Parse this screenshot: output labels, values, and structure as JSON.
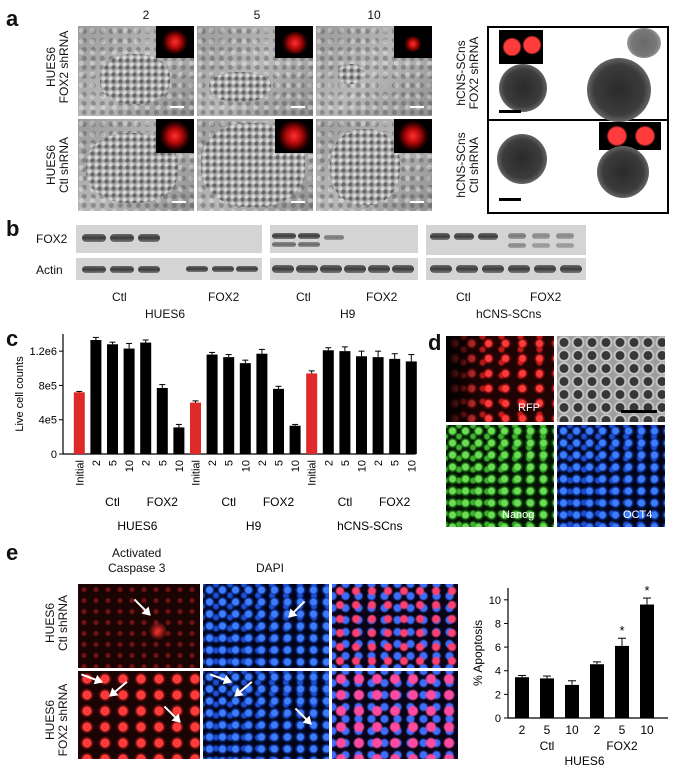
{
  "panel_letters": {
    "a": "a",
    "b": "b",
    "c": "c",
    "d": "d",
    "e": "e"
  },
  "panel_a": {
    "day_labels": [
      "2",
      "5",
      "10"
    ],
    "row_labels": [
      "HUES6\nFOX2 shRNA",
      "HUES6\nCtl shRNA"
    ],
    "sphere_row_labels": [
      "hCNS-SCns\nFOX2 shRNA",
      "hCNS-SCns\nCtl shRNA"
    ]
  },
  "panel_b": {
    "row_labels": [
      "FOX2",
      "Actin"
    ],
    "lane_labels": [
      {
        "ctl": "Ctl",
        "fox2": "FOX2",
        "group": "HUES6"
      },
      {
        "ctl": "Ctl",
        "fox2": "FOX2",
        "group": "H9"
      },
      {
        "ctl": "Ctl",
        "fox2": "FOX2",
        "group": "hCNS-SCns"
      }
    ]
  },
  "panel_d": {
    "labels": [
      "RFP",
      "Nanog",
      "OCT4"
    ]
  },
  "panel_e": {
    "col_labels": [
      "Activated\nCaspase 3",
      "DAPI"
    ],
    "row_labels": [
      "HUES6\nCtl shRNA",
      "HUES6\nFOX2 shRNA"
    ]
  },
  "chart_data": [
    {
      "type": "bar",
      "panel": "c",
      "ylabel": "Live cell counts",
      "ylim": [
        0,
        1400000
      ],
      "yticks": [
        "0",
        "4e5",
        "8e5",
        "1.2e6"
      ],
      "categories": [
        "Initial",
        "2",
        "5",
        "10",
        "2",
        "5",
        "10",
        "Initial",
        "2",
        "5",
        "10",
        "2",
        "5",
        "10",
        "Initial",
        "2",
        "5",
        "10",
        "2",
        "5",
        "10"
      ],
      "values": [
        720000,
        1330000,
        1280000,
        1230000,
        1300000,
        770000,
        310000,
        600000,
        1160000,
        1130000,
        1060000,
        1170000,
        760000,
        330000,
        940000,
        1210000,
        1200000,
        1140000,
        1130000,
        1110000,
        1080000
      ],
      "errors": [
        10000,
        30000,
        25000,
        60000,
        30000,
        40000,
        35000,
        20000,
        25000,
        30000,
        35000,
        50000,
        30000,
        15000,
        30000,
        30000,
        50000,
        60000,
        70000,
        60000,
        80000
      ],
      "bar_colors": [
        "#e02a2a",
        "#000000",
        "#000000",
        "#000000",
        "#000000",
        "#000000",
        "#000000",
        "#e02a2a",
        "#000000",
        "#000000",
        "#000000",
        "#000000",
        "#000000",
        "#000000",
        "#e02a2a",
        "#000000",
        "#000000",
        "#000000",
        "#000000",
        "#000000",
        "#000000"
      ],
      "subgroups": [
        "Ctl",
        "FOX2",
        "Ctl",
        "FOX2",
        "Ctl",
        "FOX2"
      ],
      "groups": [
        "HUES6",
        "H9",
        "hCNS-SCns"
      ]
    },
    {
      "type": "bar",
      "panel": "e",
      "ylabel": "% Apoptosis",
      "ylim": [
        0,
        11
      ],
      "yticks": [
        "0",
        "2",
        "4",
        "6",
        "8",
        "10"
      ],
      "categories": [
        "2",
        "5",
        "10",
        "2",
        "5",
        "10"
      ],
      "values": [
        3.45,
        3.35,
        2.8,
        4.55,
        6.1,
        9.6
      ],
      "errors": [
        0.15,
        0.2,
        0.35,
        0.2,
        0.65,
        0.55
      ],
      "significance": [
        "",
        "",
        "",
        "",
        "*",
        "*"
      ],
      "subgroups": [
        "Ctl",
        "FOX2"
      ],
      "group": "HUES6"
    }
  ]
}
